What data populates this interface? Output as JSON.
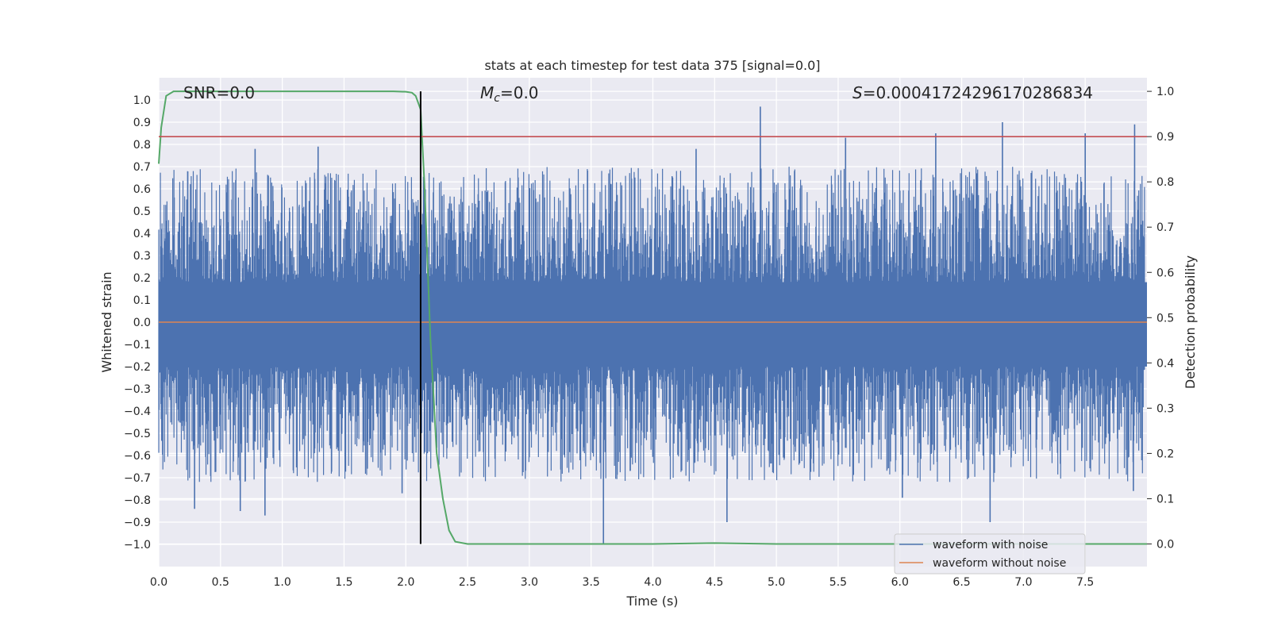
{
  "chart_data": {
    "type": "line",
    "title": "stats at each timestep for test data 375 [signal=0.0]",
    "xlabel": "Time (s)",
    "ylabel_left": "Whitened strain",
    "ylabel_right": "Detection probability",
    "xlim": [
      0.0,
      8.0
    ],
    "ylim_left": [
      -1.1,
      1.1
    ],
    "ylim_right": [
      -0.05,
      1.03
    ],
    "x_ticks": [
      "0.0",
      "0.5",
      "1.0",
      "1.5",
      "2.0",
      "2.5",
      "3.0",
      "3.5",
      "4.0",
      "4.5",
      "5.0",
      "5.5",
      "6.0",
      "6.5",
      "7.0",
      "7.5"
    ],
    "y_ticks_left": [
      "1.0",
      "0.9",
      "0.8",
      "0.7",
      "0.6",
      "0.5",
      "0.4",
      "0.3",
      "0.2",
      "0.1",
      "0.0",
      "−0.1",
      "−0.2",
      "−0.3",
      "−0.4",
      "−0.5",
      "−0.6",
      "−0.7",
      "−0.8",
      "−0.9",
      "−1.0"
    ],
    "y_ticks_right": [
      "1.0",
      "0.9",
      "0.8",
      "0.7",
      "0.6",
      "0.5",
      "0.4",
      "0.3",
      "0.2",
      "0.1",
      "0.0"
    ],
    "annotations": {
      "snr": "SNR=0.0",
      "mc_symbol": "M",
      "mc_subscript": "c",
      "mc_value": "=0.0",
      "s_symbol": "S",
      "s_value": "=0.00041724296170286834"
    },
    "grid": true,
    "legend_position": "lower-right",
    "series": [
      {
        "name": "waveform with noise",
        "axis": "left",
        "color": "#4c72b0",
        "description": "dense noisy whitened strain, roughly uniform amplitude band with spikes between -1.0 and 0.97",
        "envelope_typical": [
          -0.42,
          0.43
        ],
        "spikes": [
          {
            "x": 0.29,
            "y": -0.84
          },
          {
            "x": 0.66,
            "y": -0.85
          },
          {
            "x": 0.78,
            "y": 0.78
          },
          {
            "x": 0.86,
            "y": -0.87
          },
          {
            "x": 1.29,
            "y": 0.79
          },
          {
            "x": 1.97,
            "y": -0.77
          },
          {
            "x": 3.6,
            "y": -1.0
          },
          {
            "x": 4.35,
            "y": 0.78
          },
          {
            "x": 4.6,
            "y": -0.9
          },
          {
            "x": 4.87,
            "y": 0.97
          },
          {
            "x": 5.56,
            "y": 0.83
          },
          {
            "x": 6.02,
            "y": -0.79
          },
          {
            "x": 6.29,
            "y": 0.85
          },
          {
            "x": 6.73,
            "y": -0.9
          },
          {
            "x": 6.83,
            "y": 0.9
          },
          {
            "x": 7.5,
            "y": 0.85
          },
          {
            "x": 7.9,
            "y": 0.89
          },
          {
            "x": 7.89,
            "y": -0.76
          }
        ]
      },
      {
        "name": "waveform without noise",
        "axis": "left",
        "color": "#dd8452",
        "x": [
          0.0,
          8.0
        ],
        "y": [
          0.0,
          0.0
        ]
      },
      {
        "name": "detection probability",
        "axis": "right",
        "color": "#55a868",
        "x": [
          0.0,
          0.02,
          0.06,
          0.12,
          0.3,
          1.0,
          1.5,
          1.9,
          2.0,
          2.05,
          2.08,
          2.12,
          2.15,
          2.2,
          2.25,
          2.3,
          2.35,
          2.4,
          2.5,
          3.0,
          3.5,
          4.0,
          4.5,
          5.0,
          6.0,
          7.0,
          8.0
        ],
        "y": [
          0.84,
          0.92,
          0.99,
          1.0,
          1.0,
          1.0,
          1.0,
          1.0,
          0.999,
          0.997,
          0.99,
          0.96,
          0.8,
          0.45,
          0.2,
          0.1,
          0.03,
          0.005,
          0.0,
          0.0,
          0.0,
          0.0,
          0.002,
          0.0,
          0.0,
          0.0,
          0.0
        ]
      },
      {
        "name": "threshold",
        "axis": "right",
        "color": "#c44e52",
        "x": [
          0.0,
          8.0
        ],
        "y": [
          0.9,
          0.9
        ]
      },
      {
        "name": "marker",
        "axis": "right",
        "color": "#000000",
        "x": [
          2.12,
          2.12
        ],
        "y": [
          0.0,
          1.0
        ]
      }
    ]
  },
  "legend": {
    "entries": [
      {
        "label": "waveform with noise",
        "color": "#4c72b0"
      },
      {
        "label": "waveform without noise",
        "color": "#dd8452"
      }
    ]
  },
  "colors": {
    "plot_background": "#eaeaf2",
    "grid": "#ffffff",
    "text": "#262626"
  }
}
